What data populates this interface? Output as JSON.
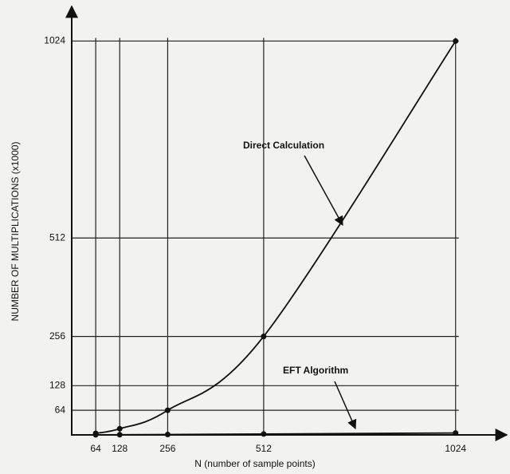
{
  "chart_data": {
    "type": "line",
    "y_label": "NUMBER OF MULTIPLICATIONS (x1000)",
    "x_label": "N (number of sample points)",
    "x": [
      64,
      128,
      256,
      512,
      1024
    ],
    "series": [
      {
        "name": "Direct Calculation",
        "color": "#111111",
        "values": [
          4,
          16,
          64,
          256,
          1024
        ]
      },
      {
        "name": "EFT Algorithm",
        "color": "#111111",
        "values": [
          0.2,
          0.4,
          1,
          2.3,
          5
        ]
      }
    ],
    "xlim": [
      0,
      1150
    ],
    "ylim": [
      0,
      1110
    ],
    "xticks": [
      64,
      128,
      256,
      512,
      1024
    ],
    "yticks": [
      64,
      128,
      256,
      512,
      1024
    ],
    "grid": true
  }
}
